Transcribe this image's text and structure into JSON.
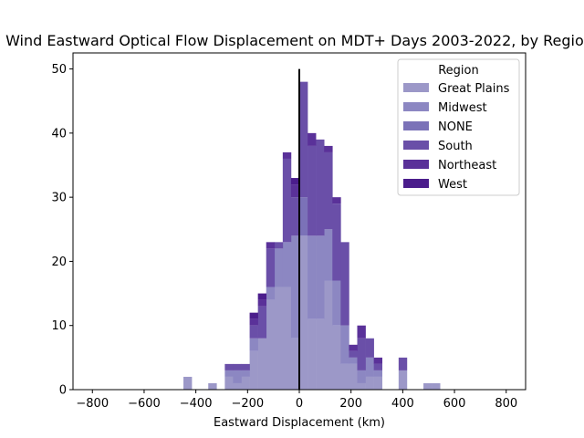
{
  "chart_data": {
    "type": "bar",
    "title": "Wind Eastward Optical Flow Displacement on MDT+ Days 2003-2022, by Region",
    "xlabel": "Eastward Displacement (km)",
    "ylabel": "",
    "xlim": [
      -875,
      875
    ],
    "ylim": [
      0,
      52.5
    ],
    "xticks": [
      -800,
      -600,
      -400,
      -200,
      0,
      200,
      400,
      600,
      800
    ],
    "yticks": [
      0,
      10,
      20,
      30,
      40,
      50
    ],
    "bin_width": 32,
    "legend_title": "Region",
    "legend_position": "top-right",
    "zero_line": {
      "x": 0,
      "ymax": 50
    },
    "series": [
      {
        "name": "Great Plains",
        "color": "#9c98c8",
        "bins": [
          [
            -448,
            2
          ],
          [
            -352,
            1
          ],
          [
            -288,
            2
          ],
          [
            -256,
            1
          ],
          [
            -224,
            2
          ],
          [
            -192,
            6
          ],
          [
            -160,
            8
          ],
          [
            -128,
            14
          ],
          [
            -96,
            16
          ],
          [
            -64,
            16
          ],
          [
            -32,
            8
          ],
          [
            0,
            24
          ],
          [
            32,
            11
          ],
          [
            64,
            11
          ],
          [
            96,
            17
          ],
          [
            128,
            10
          ],
          [
            160,
            4
          ],
          [
            192,
            4
          ],
          [
            224,
            1
          ],
          [
            256,
            2
          ],
          [
            288,
            2
          ],
          [
            384,
            3
          ],
          [
            480,
            1
          ],
          [
            512,
            1
          ]
        ]
      },
      {
        "name": "Midwest",
        "color": "#8c87c2",
        "bins": [
          [
            -288,
            1
          ],
          [
            -256,
            2
          ],
          [
            -224,
            1
          ],
          [
            -192,
            2
          ],
          [
            -128,
            2
          ],
          [
            -96,
            6
          ],
          [
            -64,
            7
          ],
          [
            -32,
            16
          ],
          [
            32,
            13
          ],
          [
            64,
            13
          ],
          [
            96,
            8
          ],
          [
            128,
            7
          ],
          [
            160,
            6
          ],
          [
            192,
            1
          ],
          [
            224,
            2
          ],
          [
            256,
            3
          ],
          [
            288,
            1
          ]
        ]
      },
      {
        "name": "NONE",
        "color": "#7b72b8",
        "bins": [
          [
            0,
            6
          ],
          [
            64,
            0
          ],
          [
            96,
            0
          ]
        ]
      },
      {
        "name": "South",
        "color": "#6a4fa8",
        "bins": [
          [
            -288,
            1
          ],
          [
            -256,
            1
          ],
          [
            -224,
            1
          ],
          [
            -192,
            2
          ],
          [
            -160,
            5
          ],
          [
            -128,
            6
          ],
          [
            -96,
            1
          ],
          [
            -64,
            13
          ],
          [
            -32,
            6
          ],
          [
            0,
            18
          ],
          [
            32,
            14
          ],
          [
            64,
            15
          ],
          [
            96,
            12
          ],
          [
            128,
            12
          ],
          [
            160,
            13
          ],
          [
            192,
            1
          ],
          [
            224,
            5
          ],
          [
            256,
            3
          ],
          [
            288,
            1
          ],
          [
            384,
            2
          ]
        ]
      },
      {
        "name": "Northeast",
        "color": "#5a3199",
        "bins": [
          [
            -192,
            1
          ],
          [
            -160,
            1
          ],
          [
            -128,
            1
          ],
          [
            -64,
            1
          ],
          [
            -32,
            2
          ],
          [
            32,
            2
          ],
          [
            96,
            1
          ],
          [
            128,
            1
          ],
          [
            192,
            1
          ],
          [
            224,
            2
          ],
          [
            288,
            1
          ]
        ]
      },
      {
        "name": "West",
        "color": "#4b1d8c",
        "bins": [
          [
            -192,
            1
          ],
          [
            -160,
            1
          ],
          [
            -32,
            1
          ]
        ]
      }
    ]
  }
}
